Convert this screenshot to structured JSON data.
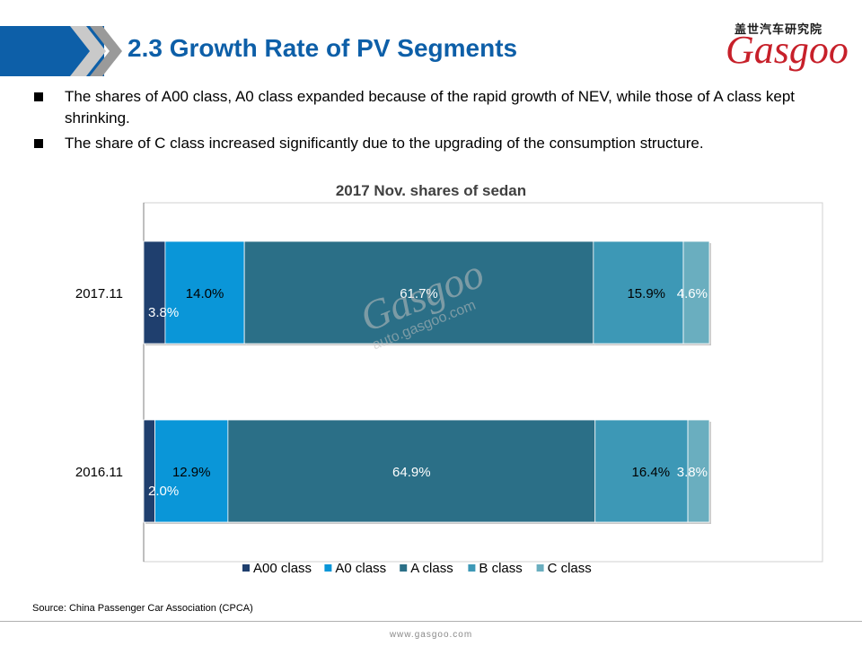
{
  "slide": {
    "title": "2.3 Growth Rate of PV Segments",
    "logo_cn": "盖世汽车研究院",
    "logo_en": "Gasgoo",
    "bullets": [
      "The shares of A00 class, A0 class expanded because of the rapid growth of NEV, while those of  A class kept shrinking.",
      "The share of C class increased significantly due to the upgrading  of the consumption structure."
    ],
    "source": "Source: China Passenger Car Association (CPCA)",
    "footer": "www.gasgoo.com",
    "watermark_big": "Gasgoo",
    "watermark_small": "auto.gasgoo.com"
  },
  "chart_data": {
    "type": "bar",
    "orientation": "horizontal",
    "stacked": "100%",
    "title": "2017 Nov. shares of sedan",
    "categories": [
      "2017.11",
      "2016.11"
    ],
    "series": [
      {
        "name": "A00 class",
        "values": [
          3.8,
          2.0
        ],
        "labels": [
          "3.8%",
          "2.0%"
        ],
        "color": "#1f3f6e"
      },
      {
        "name": "A0 class",
        "values": [
          14.0,
          12.9
        ],
        "labels": [
          "14.0%",
          "12.9%"
        ],
        "color": "#0a96d8"
      },
      {
        "name": "A class",
        "values": [
          61.7,
          64.9
        ],
        "labels": [
          "61.7%",
          "64.9%"
        ],
        "color": "#2b6f87"
      },
      {
        "name": "B class",
        "values": [
          15.9,
          16.4
        ],
        "labels": [
          "15.9%",
          "16.4%"
        ],
        "color": "#3d98b6"
      },
      {
        "name": "C class",
        "values": [
          4.6,
          3.8
        ],
        "labels": [
          "4.6%",
          "3.8%"
        ],
        "color": "#6aaebf"
      }
    ],
    "xlim": [
      0,
      100
    ],
    "grid": false,
    "legend": "bottom"
  }
}
